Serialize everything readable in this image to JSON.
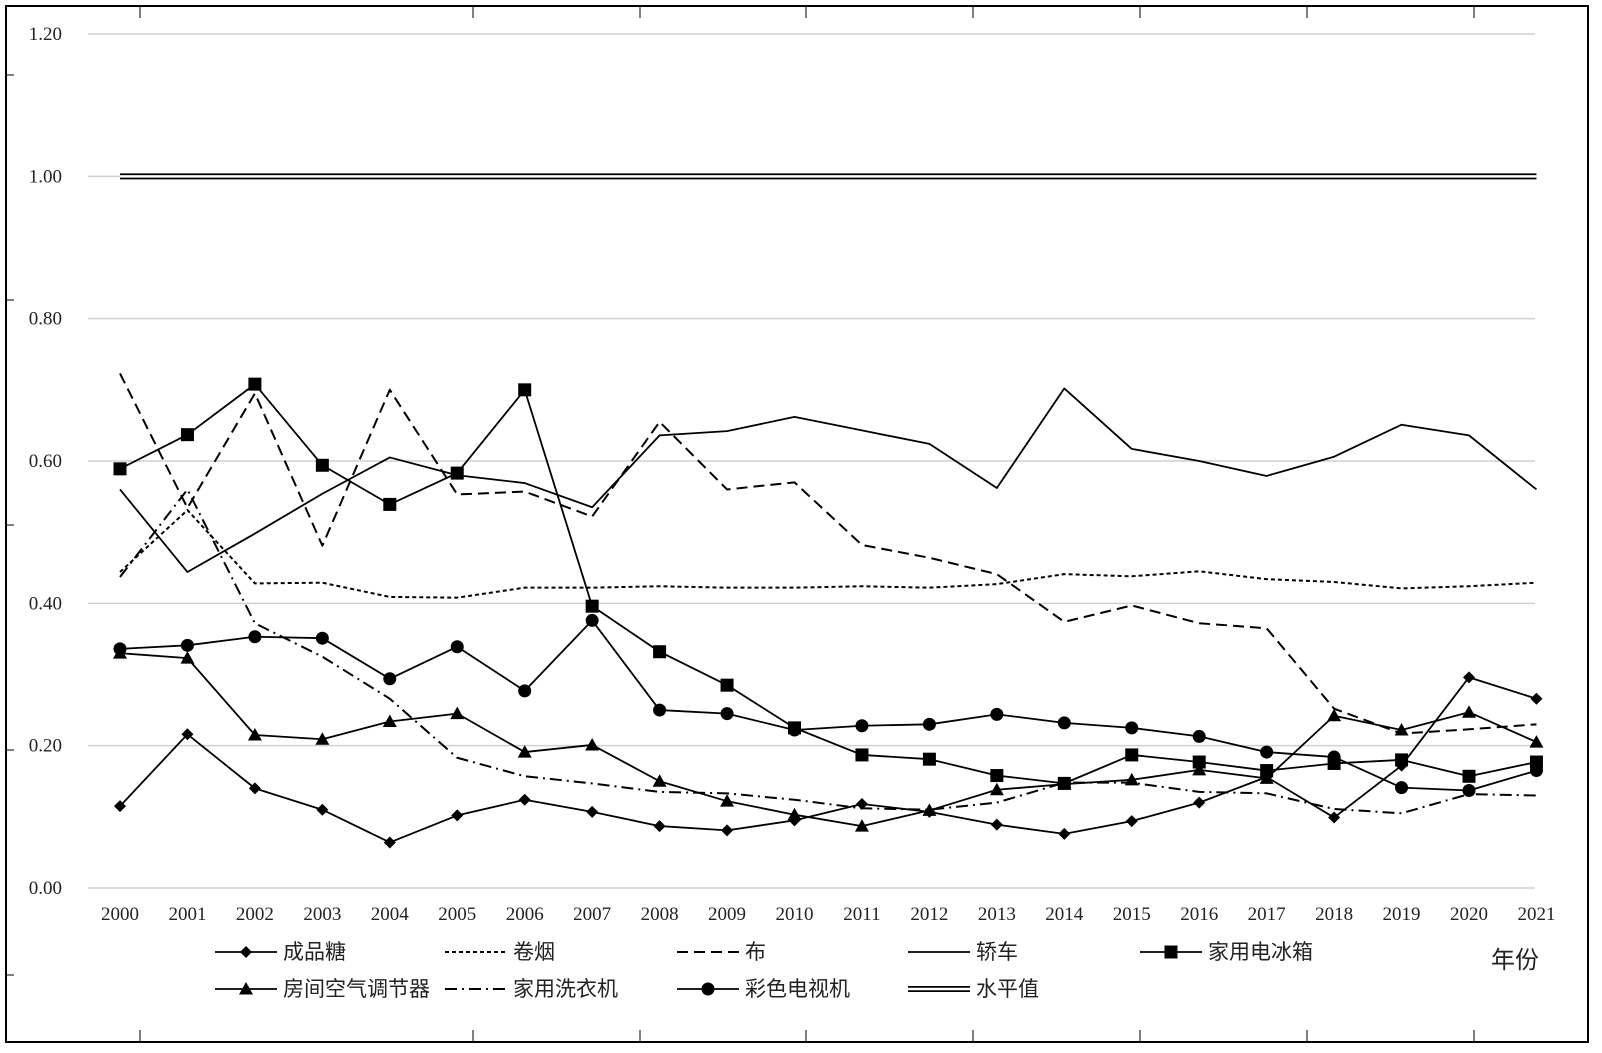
{
  "chart_data": {
    "type": "line",
    "xlabel": "年份",
    "ylabel": "",
    "ylim": [
      0,
      1.2
    ],
    "ytick_step": 0.2,
    "ytick_labels": [
      "0.00",
      "0.20",
      "0.40",
      "0.60",
      "0.80",
      "1.00",
      "1.20"
    ],
    "grid": true,
    "legend_position": "bottom",
    "x": [
      "2000",
      "2001",
      "2002",
      "2003",
      "2004",
      "2005",
      "2006",
      "2007",
      "2008",
      "2009",
      "2010",
      "2011",
      "2012",
      "2013",
      "2014",
      "2015",
      "2016",
      "2017",
      "2018",
      "2019",
      "2020",
      "2021"
    ],
    "series": [
      {
        "name": "成品糖",
        "line_style": "solid",
        "marker": "diamond",
        "values": [
          0.115,
          0.216,
          0.14,
          0.11,
          0.064,
          0.102,
          0.124,
          0.107,
          0.087,
          0.081,
          0.095,
          0.118,
          0.107,
          0.089,
          0.076,
          0.094,
          0.12,
          0.156,
          0.099,
          0.172,
          0.296,
          0.266
        ]
      },
      {
        "name": "卷烟",
        "line_style": "dotted",
        "marker": "none",
        "values": [
          0.444,
          0.531,
          0.428,
          0.429,
          0.409,
          0.408,
          0.422,
          0.422,
          0.424,
          0.422,
          0.422,
          0.424,
          0.422,
          0.427,
          0.441,
          0.438,
          0.445,
          0.434,
          0.43,
          0.421,
          0.424,
          0.429
        ]
      },
      {
        "name": "布",
        "line_style": "dashed",
        "marker": "none",
        "values": [
          0.723,
          0.534,
          0.695,
          0.481,
          0.7,
          0.553,
          0.557,
          0.522,
          0.655,
          0.56,
          0.57,
          0.482,
          0.464,
          0.441,
          0.374,
          0.397,
          0.372,
          0.365,
          0.252,
          0.217,
          0.223,
          0.23
        ]
      },
      {
        "name": "轿车",
        "line_style": "solid",
        "marker": "none",
        "values": [
          0.56,
          0.444,
          0.498,
          0.554,
          0.605,
          0.58,
          0.569,
          0.535,
          0.636,
          0.642,
          0.662,
          0.643,
          0.624,
          0.562,
          0.702,
          0.617,
          0.6,
          0.579,
          0.606,
          0.651,
          0.636,
          0.56
        ]
      },
      {
        "name": "家用电冰箱",
        "line_style": "solid",
        "marker": "square",
        "values": [
          0.589,
          0.637,
          0.708,
          0.594,
          0.539,
          0.583,
          0.7,
          0.396,
          0.332,
          0.285,
          0.225,
          0.187,
          0.181,
          0.158,
          0.147,
          0.187,
          0.177,
          0.165,
          0.175,
          0.18,
          0.157,
          0.177
        ]
      },
      {
        "name": "房间空气调节器",
        "line_style": "solid",
        "marker": "triangle",
        "values": [
          0.33,
          0.323,
          0.215,
          0.209,
          0.234,
          0.245,
          0.191,
          0.201,
          0.15,
          0.122,
          0.103,
          0.087,
          0.109,
          0.138,
          0.146,
          0.152,
          0.166,
          0.154,
          0.242,
          0.222,
          0.247,
          0.205
        ]
      },
      {
        "name": "家用洗衣机",
        "line_style": "dashdot",
        "marker": "none",
        "values": [
          0.437,
          0.56,
          0.372,
          0.325,
          0.266,
          0.183,
          0.157,
          0.147,
          0.135,
          0.133,
          0.124,
          0.112,
          0.11,
          0.12,
          0.148,
          0.148,
          0.135,
          0.133,
          0.111,
          0.105,
          0.132,
          0.13
        ]
      },
      {
        "name": "彩色电视机",
        "line_style": "solid",
        "marker": "circle",
        "values": [
          0.336,
          0.341,
          0.353,
          0.351,
          0.294,
          0.339,
          0.277,
          0.376,
          0.25,
          0.245,
          0.222,
          0.228,
          0.23,
          0.244,
          0.232,
          0.225,
          0.213,
          0.191,
          0.184,
          0.141,
          0.137,
          0.165
        ]
      },
      {
        "name": "水平值",
        "line_style": "double",
        "marker": "none",
        "values": [
          1,
          1,
          1,
          1,
          1,
          1,
          1,
          1,
          1,
          1,
          1,
          1,
          1,
          1,
          1,
          1,
          1,
          1,
          1,
          1,
          1,
          1
        ]
      }
    ]
  }
}
